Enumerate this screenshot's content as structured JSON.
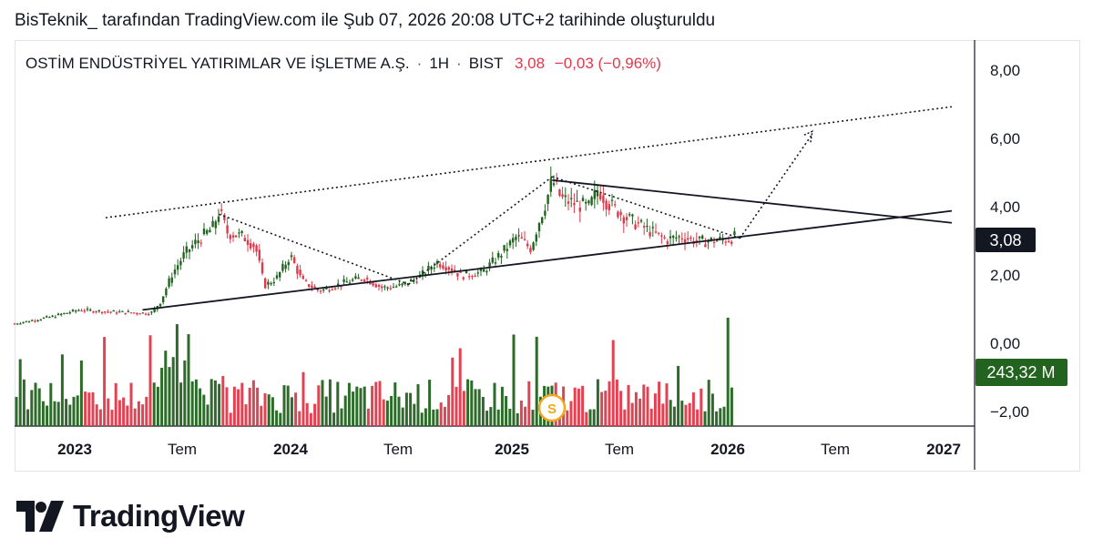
{
  "caption": "BisTeknik_ tarafından TradingView.com ile Şub 07, 2026 20:08 UTC+2 tarihinde oluşturuldu",
  "legend": {
    "symbol": "OSTİM ENDÜSTRİYEL YATIRIMLAR VE İŞLETME A.Ş.",
    "interval": "1H",
    "exchange": "BIST",
    "last": "3,08",
    "change": "−0,03 (−0,96%)"
  },
  "badges": {
    "price": "3,08",
    "volume": "243,32 M"
  },
  "marker_icon": "S",
  "brand": "TradingView",
  "colors": {
    "up": "#22631f",
    "down": "#e0394a",
    "line": "#131722"
  },
  "chart_data": {
    "type": "candlestick",
    "x_tick_labels": [
      "2023",
      "Tem",
      "2024",
      "Tem",
      "2025",
      "Tem",
      "2026",
      "Tem",
      "2027"
    ],
    "y_tick_labels": [
      "8,00",
      "6,00",
      "4,00",
      "2,00",
      "0,00",
      "−2,00"
    ],
    "ylim": [
      -2,
      8
    ],
    "price_path": [
      [
        "2022-11-01",
        0.55
      ],
      [
        "2023-01-01",
        0.75
      ],
      [
        "2023-02-15",
        0.95
      ],
      [
        "2023-04-01",
        0.9
      ],
      [
        "2023-06-15",
        0.85
      ],
      [
        "2023-07-01",
        1.2
      ],
      [
        "2023-07-20",
        2.0
      ],
      [
        "2023-08-10",
        2.6
      ],
      [
        "2023-09-01",
        3.0
      ],
      [
        "2023-09-25",
        3.35
      ],
      [
        "2023-10-06",
        3.85
      ],
      [
        "2023-10-20",
        3.2
      ],
      [
        "2023-11-15",
        3.1
      ],
      [
        "2023-12-05",
        2.8
      ],
      [
        "2023-12-20",
        1.65
      ],
      [
        "2024-01-10",
        1.9
      ],
      [
        "2024-02-01",
        2.55
      ],
      [
        "2024-02-20",
        1.8
      ],
      [
        "2024-03-20",
        1.5
      ],
      [
        "2024-05-01",
        1.75
      ],
      [
        "2024-06-01",
        1.9
      ],
      [
        "2024-07-01",
        1.6
      ],
      [
        "2024-08-01",
        1.65
      ],
      [
        "2024-09-01",
        1.9
      ],
      [
        "2024-10-01",
        2.35
      ],
      [
        "2024-10-20",
        2.2
      ],
      [
        "2024-11-10",
        1.95
      ],
      [
        "2024-12-15",
        2.05
      ],
      [
        "2025-01-15",
        2.6
      ],
      [
        "2025-02-10",
        3.1
      ],
      [
        "2025-03-05",
        2.75
      ],
      [
        "2025-03-20",
        3.6
      ],
      [
        "2025-04-01",
        4.2
      ],
      [
        "2025-04-10",
        4.75
      ],
      [
        "2025-04-25",
        4.2
      ],
      [
        "2025-05-20",
        4.05
      ],
      [
        "2025-06-10",
        3.95
      ],
      [
        "2025-06-25",
        4.5
      ],
      [
        "2025-07-10",
        4.1
      ],
      [
        "2025-08-10",
        3.65
      ],
      [
        "2025-09-10",
        3.35
      ],
      [
        "2025-10-15",
        3.0
      ],
      [
        "2025-11-10",
        3.1
      ],
      [
        "2025-12-10",
        2.95
      ],
      [
        "2026-01-20",
        3.0
      ],
      [
        "2026-02-06",
        3.08
      ]
    ],
    "volume_unit": "M",
    "last_volume": 243.32,
    "trendlines": [
      {
        "style": "solid",
        "from": [
          "2023-06-01",
          0.95
        ],
        "to": [
          "2027-02-01",
          3.85
        ]
      },
      {
        "style": "solid",
        "from": [
          "2025-04-10",
          4.75
        ],
        "to": [
          "2027-02-01",
          3.5
        ]
      },
      {
        "style": "dotted",
        "from": [
          "2023-04-01",
          3.65
        ],
        "to": [
          "2027-02-01",
          6.9
        ]
      },
      {
        "style": "dotted",
        "from": [
          "2023-10-06",
          3.75
        ],
        "to": [
          "2024-08-15",
          1.7
        ]
      },
      {
        "style": "dotted",
        "from": [
          "2024-08-15",
          1.7
        ],
        "to": [
          "2025-04-10",
          4.85
        ]
      },
      {
        "style": "dotted",
        "from": [
          "2025-04-10",
          4.85
        ],
        "to": [
          "2026-02-15",
          3.05
        ]
      },
      {
        "style": "dotted",
        "from": [
          "2026-02-15",
          3.05
        ],
        "to": [
          "2026-06-15",
          6.1
        ]
      }
    ]
  }
}
